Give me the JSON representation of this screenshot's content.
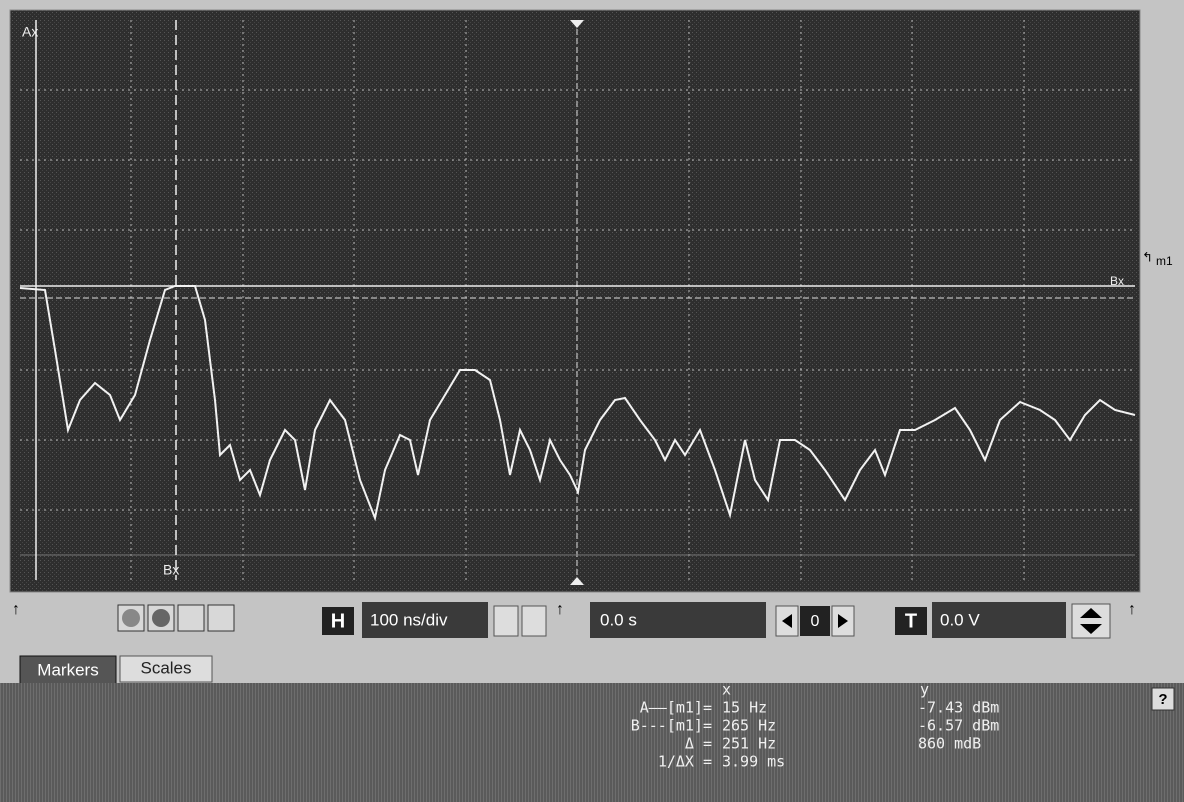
{
  "screen": {
    "marker_a": "Ax",
    "marker_b": "Bx",
    "marker_b_right": "Bx",
    "marker_m1": "m1"
  },
  "toolbar": {
    "horizontal_button": "H",
    "timebase": "100 ns/div",
    "position": "0.0 s",
    "position_reset": "0",
    "trigger_button": "T",
    "trigger_level": "0.0 V"
  },
  "tabs": [
    "Markers",
    "Scales"
  ],
  "markers": {
    "help": "?",
    "header_x": "x",
    "header_y": "y",
    "rows": [
      {
        "label": "A——[m1]=",
        "x": "15 Hz",
        "y": "-7.43 dBm"
      },
      {
        "label": "B---[m1]=",
        "x": "265 Hz",
        "y": "-6.57 dBm"
      },
      {
        "label": "Δ =",
        "x": "251 Hz",
        "y": "860 mdB"
      },
      {
        "label": "1/ΔX =",
        "x": "3.99 ms",
        "y": null
      }
    ]
  }
}
